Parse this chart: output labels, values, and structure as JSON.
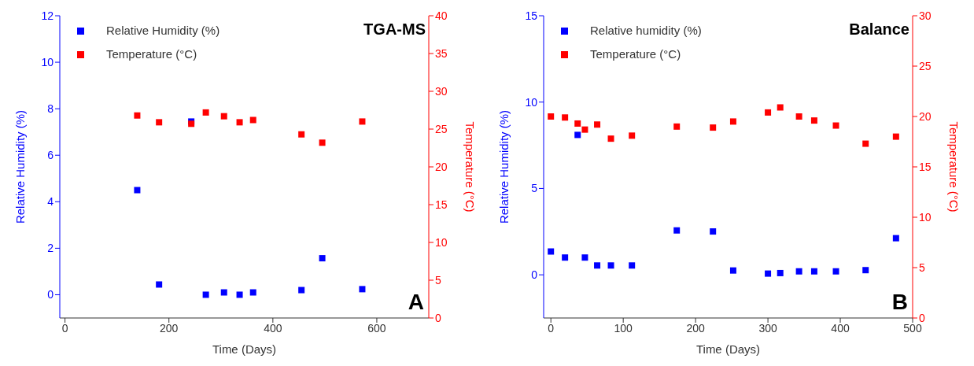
{
  "chart_data": [
    {
      "type": "scatter",
      "xlabel": "Time (Days)",
      "ylabel": "Relative Humidity (%)",
      "y2label": "Temperature (°C)",
      "annotations": [
        "TGA-MS",
        "A"
      ],
      "xlim": [
        -10,
        700
      ],
      "xticks": [
        0,
        200,
        400,
        600
      ],
      "ylim": [
        -1,
        12
      ],
      "yticks": [
        0,
        2,
        4,
        6,
        8,
        10,
        12
      ],
      "y2lim": [
        0,
        40
      ],
      "y2ticks": [
        0,
        5,
        10,
        15,
        20,
        25,
        30,
        35,
        40
      ],
      "grid": false,
      "legend": "top left",
      "marker": "square",
      "series": [
        {
          "name": "Relative Humidity (%)",
          "color": "#0000ff",
          "x": [
            139,
            181,
            243,
            271,
            306,
            336,
            362,
            455,
            495,
            572
          ],
          "values": [
            4.5,
            0.44,
            7.45,
            0,
            0.1,
            0,
            0.1,
            0.2,
            1.57,
            0.24
          ]
        },
        {
          "name": "Temperature (°C)",
          "color": "#ff0000",
          "axis": "y2",
          "x": [
            139,
            181,
            243,
            271,
            306,
            336,
            362,
            455,
            495,
            572
          ],
          "values": [
            26.8,
            25.9,
            25.7,
            27.2,
            26.7,
            25.9,
            26.2,
            24.3,
            23.2,
            26.0
          ]
        }
      ]
    },
    {
      "type": "scatter",
      "xlabel": "Time (Days)",
      "ylabel": "Relative Humidity (%)",
      "y2label": "Temperature (°C)",
      "annotations": [
        "Balance",
        "B"
      ],
      "xlim": [
        -10,
        500
      ],
      "xticks": [
        0,
        100,
        200,
        300,
        400,
        500
      ],
      "ylim": [
        -2.5,
        15
      ],
      "yticks": [
        0,
        5,
        10,
        15
      ],
      "y2lim": [
        0,
        30
      ],
      "y2ticks": [
        0,
        5,
        10,
        15,
        20,
        25,
        30
      ],
      "grid": false,
      "legend": "top left",
      "marker": "square",
      "series": [
        {
          "name": "Relative humidity (%)",
          "color": "#0000ff",
          "x": [
            0,
            19.5,
            37,
            47,
            64,
            83,
            112,
            174,
            224,
            252,
            300,
            317,
            343,
            364,
            394,
            435,
            477
          ],
          "values": [
            1.35,
            1.0,
            8.1,
            1.0,
            0.54,
            0.54,
            0.54,
            2.57,
            2.51,
            0.25,
            0.07,
            0.1,
            0.2,
            0.2,
            0.2,
            0.27,
            2.12
          ]
        },
        {
          "name": "Temperature (°C)",
          "color": "#ff0000",
          "axis": "y2",
          "x": [
            0,
            19.5,
            37,
            47,
            64,
            83,
            112,
            174,
            224,
            252,
            300,
            317,
            343,
            364,
            394,
            435,
            477
          ],
          "values": [
            20.0,
            19.9,
            19.3,
            18.7,
            19.2,
            17.8,
            18.1,
            19.0,
            18.9,
            19.5,
            20.4,
            20.9,
            20.0,
            19.6,
            19.1,
            17.3,
            18.0
          ]
        }
      ]
    }
  ]
}
